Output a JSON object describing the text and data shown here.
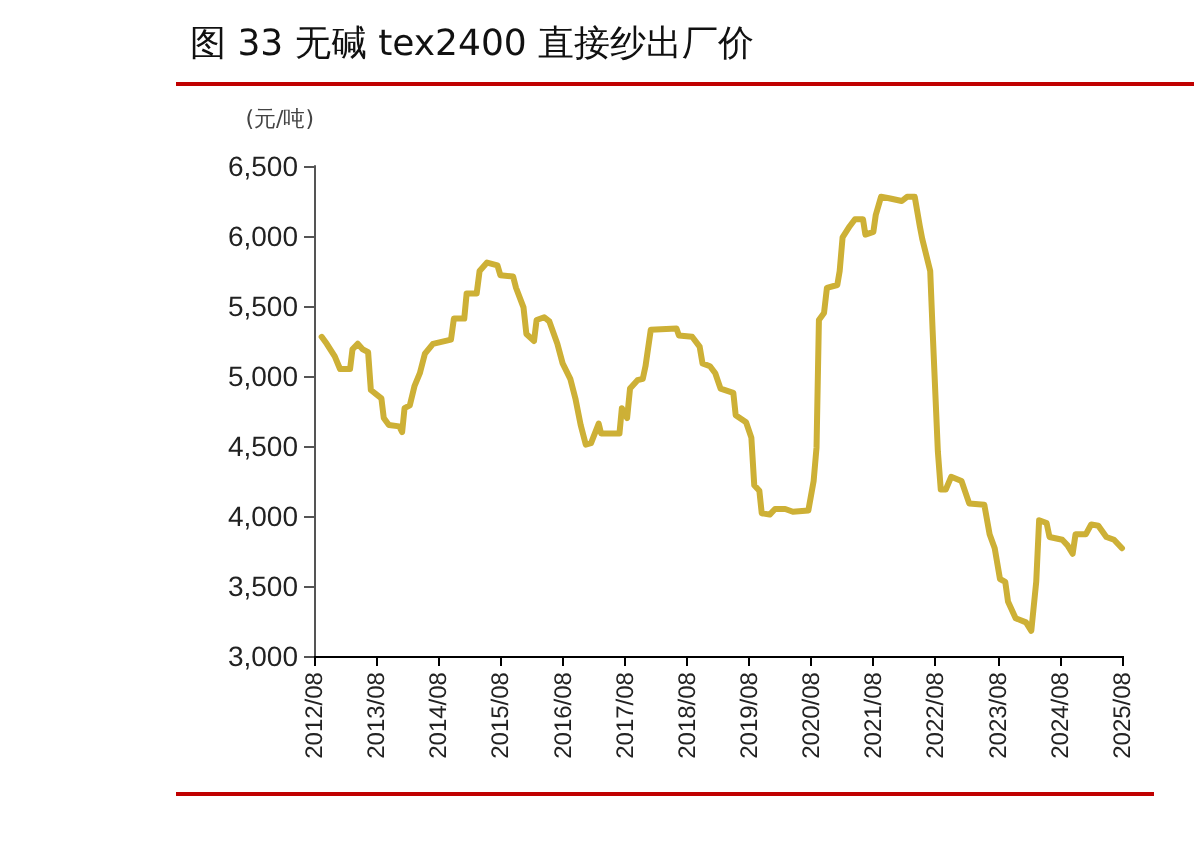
{
  "chart_data": {
    "type": "line",
    "title": "图 33 无碱 tex2400 直接纱出厂价",
    "ylabel": "(元/吨)",
    "xlim": [
      "2012-08",
      "2025-08"
    ],
    "xticks": [
      {
        "value": "2012-08",
        "label": "2012/08"
      },
      {
        "value": "2013-08",
        "label": "2013/08"
      },
      {
        "value": "2014-08",
        "label": "2014/08"
      },
      {
        "value": "2015-08",
        "label": "2015/08"
      },
      {
        "value": "2016-08",
        "label": "2016/08"
      },
      {
        "value": "2017-08",
        "label": "2017/08"
      },
      {
        "value": "2018-08",
        "label": "2018/08"
      },
      {
        "value": "2019-08",
        "label": "2019/08"
      },
      {
        "value": "2020-08",
        "label": "2020/08"
      },
      {
        "value": "2021-08",
        "label": "2021/08"
      },
      {
        "value": "2022-08",
        "label": "2022/08"
      },
      {
        "value": "2023-08",
        "label": "2023/08"
      },
      {
        "value": "2024-08",
        "label": "2024/08"
      },
      {
        "value": "2025-08",
        "label": "2025/08"
      }
    ],
    "ylim": [
      3000,
      6500
    ],
    "yticks": [
      {
        "value": 3000,
        "label": "3,000"
      },
      {
        "value": 3500,
        "label": "3,500"
      },
      {
        "value": 4000,
        "label": "4,000"
      },
      {
        "value": 4500,
        "label": "4,500"
      },
      {
        "value": 5000,
        "label": "5,000"
      },
      {
        "value": 5500,
        "label": "5,500"
      },
      {
        "value": 6000,
        "label": "6,000"
      },
      {
        "value": 6500,
        "label": "6,500"
      }
    ],
    "grid": false,
    "marker": "none",
    "line_style": "solid",
    "series": [
      {
        "color": "#cdb036",
        "x": [
          "2012-09-15",
          "2012-10-15",
          "2012-12-01",
          "2013-01-01",
          "2013-03-01",
          "2013-03-15",
          "2013-04-15",
          "2013-05-15",
          "2013-06-15",
          "2013-07-01",
          "2013-09-01",
          "2013-09-15",
          "2013-10-15",
          "2013-12-15",
          "2014-01-01",
          "2014-01-15",
          "2014-02-15",
          "2014-03-15",
          "2014-04-15",
          "2014-05-15",
          "2014-07-01",
          "2014-10-15",
          "2014-11-01",
          "2015-01-01",
          "2015-01-15",
          "2015-03-15",
          "2015-04-01",
          "2015-05-15",
          "2015-07-15",
          "2015-08-01",
          "2015-10-15",
          "2015-11-01",
          "2015-12-15",
          "2016-01-01",
          "2016-02-15",
          "2016-03-01",
          "2016-04-15",
          "2016-05-15",
          "2016-07-01",
          "2016-08-01",
          "2016-09-15",
          "2016-10-15",
          "2016-11-15",
          "2016-12-15",
          "2017-01-15",
          "2017-03-01",
          "2017-03-15",
          "2017-07-01",
          "2017-07-15",
          "2017-08-15",
          "2017-09-01",
          "2017-10-15",
          "2017-11-15",
          "2017-12-01",
          "2018-01-01",
          "2018-06-01",
          "2018-06-15",
          "2018-09-01",
          "2018-10-15",
          "2018-11-01",
          "2018-12-15",
          "2019-01-15",
          "2019-02-15",
          "2019-05-01",
          "2019-05-15",
          "2019-07-15",
          "2019-08-15",
          "2019-09-01",
          "2019-10-01",
          "2019-10-15",
          "2019-12-01",
          "2020-01-01",
          "2020-03-01",
          "2020-04-15",
          "2020-07-15",
          "2020-08-15",
          "2020-09-01",
          "2020-09-15",
          "2020-10-15",
          "2020-11-01",
          "2021-01-01",
          "2021-01-15",
          "2021-02-01",
          "2021-03-15",
          "2021-04-15",
          "2021-06-01",
          "2021-06-15",
          "2021-08-01",
          "2021-08-15",
          "2021-09-15",
          "2021-11-01",
          "2022-01-15",
          "2022-02-15",
          "2022-04-01",
          "2022-05-01",
          "2022-05-15",
          "2022-07-01",
          "2022-07-15",
          "2022-08-15",
          "2022-09-01",
          "2022-10-01",
          "2022-11-01",
          "2023-01-01",
          "2023-02-15",
          "2023-05-15",
          "2023-06-15",
          "2023-07-15",
          "2023-08-15",
          "2023-09-15",
          "2023-10-01",
          "2023-11-15",
          "2024-01-15",
          "2024-02-15",
          "2024-03-15",
          "2024-04-01",
          "2024-05-15",
          "2024-06-01",
          "2024-08-15",
          "2024-09-15",
          "2024-10-15",
          "2024-11-01",
          "2025-01-01",
          "2025-02-01",
          "2025-03-15",
          "2025-05-01",
          "2025-06-15",
          "2025-08-01"
        ],
        "values": [
          5280,
          5230,
          5140,
          5050,
          5050,
          5190,
          5230,
          5190,
          5170,
          4900,
          4840,
          4700,
          4650,
          4640,
          4600,
          4770,
          4790,
          4930,
          5020,
          5160,
          5230,
          5260,
          5410,
          5410,
          5590,
          5590,
          5750,
          5810,
          5790,
          5720,
          5710,
          5630,
          5490,
          5300,
          5250,
          5400,
          5420,
          5390,
          5230,
          5090,
          4980,
          4840,
          4650,
          4510,
          4520,
          4660,
          4590,
          4590,
          4770,
          4700,
          4910,
          4970,
          4980,
          5070,
          5330,
          5340,
          5290,
          5280,
          5210,
          5090,
          5070,
          5020,
          4910,
          4880,
          4720,
          4670,
          4560,
          4220,
          4180,
          4020,
          4010,
          4050,
          4050,
          4030,
          4040,
          4250,
          4490,
          5400,
          5450,
          5630,
          5650,
          5750,
          5990,
          6070,
          6120,
          6120,
          6010,
          6030,
          6150,
          6280,
          6270,
          6250,
          6280,
          6280,
          6070,
          5980,
          5750,
          5330,
          4460,
          4190,
          4190,
          4280,
          4250,
          4090,
          4080,
          3870,
          3770,
          3550,
          3530,
          3390,
          3270,
          3240,
          3180,
          3530,
          3970,
          3950,
          3850,
          3830,
          3790,
          3730,
          3870,
          3870,
          3940,
          3930,
          3850,
          3830,
          3770
        ]
      }
    ]
  }
}
